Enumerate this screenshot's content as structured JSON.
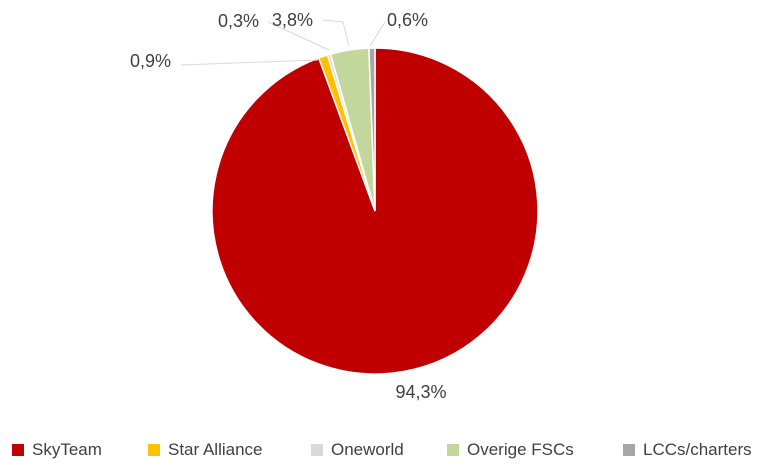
{
  "chart_data": {
    "type": "pie",
    "title": "",
    "start_angle_deg": 0,
    "direction": "clockwise",
    "legend_position": "bottom",
    "slices": [
      {
        "name": "SkyTeam",
        "value": 94.3,
        "label": "94,3%",
        "color": "#C00000"
      },
      {
        "name": "Star Alliance",
        "value": 0.9,
        "label": "0,9%",
        "color": "#FFC000"
      },
      {
        "name": "Oneworld",
        "value": 0.3,
        "label": "0,3%",
        "color": "#D9D9D9"
      },
      {
        "name": "Overige FSCs",
        "value": 3.8,
        "label": "3,8%",
        "color": "#C3D69B"
      },
      {
        "name": "LCCs/charters",
        "value": 0.6,
        "label": "0,6%",
        "color": "#A6A6A6"
      }
    ]
  }
}
